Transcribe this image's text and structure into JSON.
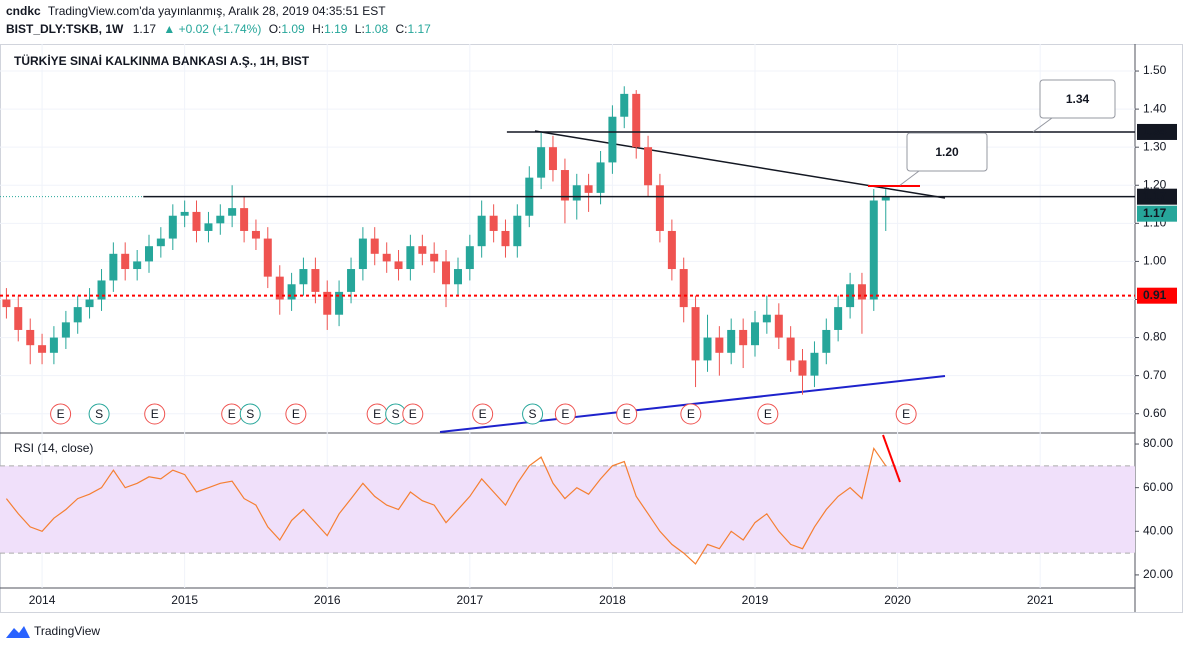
{
  "header": {
    "user": "cndkc",
    "published": "TradingView.com'da yayınlanmış, Aralık 28, 2019 04:35:51 EST",
    "symbol": "BIST_DLY:TSKB, 1W",
    "last": "1.17",
    "change": "▲ +0.02 (+1.74%)",
    "o_label": "O:",
    "o": "1.09",
    "h_label": "H:",
    "h": "1.19",
    "l_label": "L:",
    "l": "1.08",
    "c_label": "C:",
    "c": "1.17"
  },
  "footer": "TradingView",
  "chart_data": [
    {
      "type": "candlestick",
      "title": "TÜRKİYE SINAİ KALKINMA BANKASI A.Ş., 1H, BIST",
      "x": [
        2013.75,
        2013.833,
        2013.917,
        2014,
        2014.083,
        2014.167,
        2014.25,
        2014.333,
        2014.417,
        2014.5,
        2014.583,
        2014.667,
        2014.75,
        2014.833,
        2014.917,
        2015,
        2015.083,
        2015.167,
        2015.25,
        2015.333,
        2015.417,
        2015.5,
        2015.583,
        2015.667,
        2015.75,
        2015.833,
        2015.917,
        2016,
        2016.083,
        2016.167,
        2016.25,
        2016.333,
        2016.417,
        2016.5,
        2016.583,
        2016.667,
        2016.75,
        2016.833,
        2016.917,
        2017,
        2017.083,
        2017.167,
        2017.25,
        2017.333,
        2017.417,
        2017.5,
        2017.583,
        2017.667,
        2017.75,
        2017.833,
        2017.917,
        2018,
        2018.083,
        2018.167,
        2018.25,
        2018.333,
        2018.417,
        2018.5,
        2018.583,
        2018.667,
        2018.75,
        2018.833,
        2018.917,
        2019,
        2019.083,
        2019.167,
        2019.25,
        2019.333,
        2019.417,
        2019.5,
        2019.583,
        2019.667,
        2019.75,
        2019.833,
        2019.917
      ],
      "open": [
        0.9,
        0.88,
        0.82,
        0.78,
        0.76,
        0.8,
        0.84,
        0.88,
        0.9,
        0.95,
        1.02,
        0.98,
        1.0,
        1.04,
        1.06,
        1.12,
        1.13,
        1.08,
        1.1,
        1.12,
        1.14,
        1.08,
        1.06,
        0.96,
        0.9,
        0.94,
        0.98,
        0.92,
        0.86,
        0.92,
        0.98,
        1.06,
        1.02,
        1.0,
        0.98,
        1.04,
        1.02,
        1.0,
        0.94,
        0.98,
        1.04,
        1.12,
        1.08,
        1.04,
        1.12,
        1.22,
        1.3,
        1.24,
        1.16,
        1.2,
        1.18,
        1.26,
        1.38,
        1.44,
        1.3,
        1.2,
        1.08,
        0.98,
        0.88,
        0.74,
        0.8,
        0.76,
        0.82,
        0.78,
        0.84,
        0.86,
        0.8,
        0.74,
        0.7,
        0.76,
        0.82,
        0.88,
        0.94,
        0.9,
        1.16
      ],
      "high": [
        0.93,
        0.91,
        0.85,
        0.81,
        0.83,
        0.87,
        0.91,
        0.93,
        0.98,
        1.05,
        1.05,
        1.03,
        1.07,
        1.09,
        1.15,
        1.16,
        1.16,
        1.13,
        1.15,
        1.2,
        1.17,
        1.11,
        1.09,
        0.99,
        0.97,
        1.01,
        1.01,
        0.95,
        0.95,
        1.01,
        1.09,
        1.09,
        1.05,
        1.03,
        1.07,
        1.07,
        1.05,
        1.03,
        1.01,
        1.07,
        1.16,
        1.15,
        1.11,
        1.15,
        1.25,
        1.34,
        1.33,
        1.27,
        1.23,
        1.23,
        1.29,
        1.41,
        1.46,
        1.45,
        1.33,
        1.23,
        1.11,
        1.01,
        0.91,
        0.86,
        0.83,
        0.85,
        0.85,
        0.87,
        0.91,
        0.89,
        0.83,
        0.77,
        0.79,
        0.85,
        0.91,
        0.97,
        0.97,
        1.19,
        1.19
      ],
      "low": [
        0.85,
        0.79,
        0.73,
        0.73,
        0.73,
        0.77,
        0.81,
        0.85,
        0.87,
        0.92,
        0.95,
        0.95,
        0.97,
        1.01,
        1.03,
        1.09,
        1.05,
        1.05,
        1.07,
        1.09,
        1.05,
        1.03,
        0.93,
        0.86,
        0.87,
        0.91,
        0.89,
        0.82,
        0.83,
        0.89,
        0.95,
        0.99,
        0.97,
        0.95,
        0.95,
        0.99,
        0.97,
        0.88,
        0.91,
        0.95,
        1.01,
        1.05,
        1.01,
        1.01,
        1.09,
        1.19,
        1.21,
        1.1,
        1.11,
        1.13,
        1.15,
        1.23,
        1.35,
        1.27,
        1.17,
        1.05,
        0.95,
        0.84,
        0.67,
        0.71,
        0.7,
        0.73,
        0.72,
        0.75,
        0.81,
        0.77,
        0.71,
        0.65,
        0.67,
        0.73,
        0.79,
        0.85,
        0.81,
        0.87,
        1.08
      ],
      "close": [
        0.88,
        0.82,
        0.78,
        0.76,
        0.8,
        0.84,
        0.88,
        0.9,
        0.95,
        1.02,
        0.98,
        1.0,
        1.04,
        1.06,
        1.12,
        1.13,
        1.08,
        1.1,
        1.12,
        1.14,
        1.08,
        1.06,
        0.96,
        0.9,
        0.94,
        0.98,
        0.92,
        0.86,
        0.92,
        0.98,
        1.06,
        1.02,
        1.0,
        0.98,
        1.04,
        1.02,
        1.0,
        0.94,
        0.98,
        1.04,
        1.12,
        1.08,
        1.04,
        1.12,
        1.22,
        1.3,
        1.24,
        1.16,
        1.2,
        1.18,
        1.26,
        1.38,
        1.44,
        1.3,
        1.2,
        1.08,
        0.98,
        0.88,
        0.74,
        0.8,
        0.76,
        0.82,
        0.78,
        0.84,
        0.86,
        0.8,
        0.74,
        0.7,
        0.76,
        0.82,
        0.88,
        0.94,
        0.9,
        1.16,
        1.17
      ],
      "up_color": "#26a69a",
      "down_color": "#ef5350",
      "xlim": [
        2013.705,
        2021.665
      ],
      "xticks": [
        2014,
        2015,
        2016,
        2017,
        2018,
        2019,
        2020,
        2021
      ],
      "ylim": [
        0.552,
        1.571
      ],
      "yticks": [
        {
          "value": 0.6,
          "label": "0.60"
        },
        {
          "value": 0.7,
          "label": "0.70"
        },
        {
          "value": 0.8,
          "label": "0.80"
        },
        {
          "value": 0.9,
          "label": "0.90"
        },
        {
          "value": 1.0,
          "label": "1.00"
        },
        {
          "value": 1.1,
          "label": "1.10"
        },
        {
          "value": 1.2,
          "label": "1.20"
        },
        {
          "value": 1.3,
          "label": "1.30"
        },
        {
          "value": 1.4,
          "label": "1.40"
        },
        {
          "value": 1.5,
          "label": "1.50"
        }
      ],
      "levels": [
        {
          "value": 1.34,
          "label": "1.34",
          "color": "#131722",
          "from": 2017.26
        },
        {
          "value": 1.17,
          "label": "1.17",
          "color": "#131722",
          "from": 2014.71
        },
        {
          "value": 0.91,
          "label": "0.91",
          "color": "#ff0000",
          "from": 2013.705,
          "dashed": true
        }
      ],
      "last": {
        "value": 1.17,
        "label": "1.17",
        "color": "#26a69a"
      },
      "annotations": [
        {
          "value": 1.34,
          "label": "1.34"
        },
        {
          "value": 1.2,
          "label": "1.20"
        }
      ],
      "events": [
        {
          "label": "E",
          "x": 2014.13
        },
        {
          "label": "S",
          "x": 2014.4
        },
        {
          "label": "E",
          "x": 2014.79
        },
        {
          "label": "E",
          "x": 2015.33
        },
        {
          "label": "S",
          "x": 2015.46
        },
        {
          "label": "E",
          "x": 2015.78
        },
        {
          "label": "E",
          "x": 2016.35
        },
        {
          "label": "S",
          "x": 2016.48
        },
        {
          "label": "E",
          "x": 2016.6
        },
        {
          "label": "E",
          "x": 2017.09
        },
        {
          "label": "S",
          "x": 2017.44
        },
        {
          "label": "E",
          "x": 2017.67
        },
        {
          "label": "E",
          "x": 2018.1
        },
        {
          "label": "E",
          "x": 2018.55
        },
        {
          "label": "E",
          "x": 2019.09
        },
        {
          "label": "E",
          "x": 2020.06
        }
      ]
    },
    {
      "type": "line",
      "title": "RSI (14, close)",
      "x": [
        2013.75,
        2013.833,
        2013.917,
        2014,
        2014.083,
        2014.167,
        2014.25,
        2014.333,
        2014.417,
        2014.5,
        2014.583,
        2014.667,
        2014.75,
        2014.833,
        2014.917,
        2015,
        2015.083,
        2015.167,
        2015.25,
        2015.333,
        2015.417,
        2015.5,
        2015.583,
        2015.667,
        2015.75,
        2015.833,
        2015.917,
        2016,
        2016.083,
        2016.167,
        2016.25,
        2016.333,
        2016.417,
        2016.5,
        2016.583,
        2016.667,
        2016.75,
        2016.833,
        2016.917,
        2017,
        2017.083,
        2017.167,
        2017.25,
        2017.333,
        2017.417,
        2017.5,
        2017.583,
        2017.667,
        2017.75,
        2017.833,
        2017.917,
        2018,
        2018.083,
        2018.167,
        2018.25,
        2018.333,
        2018.417,
        2018.5,
        2018.583,
        2018.667,
        2018.75,
        2018.833,
        2018.917,
        2019,
        2019.083,
        2019.167,
        2019.25,
        2019.333,
        2019.417,
        2019.5,
        2019.583,
        2019.667,
        2019.75,
        2019.833,
        2019.917
      ],
      "series": [
        {
          "color": "#f57f32",
          "values": [
            55,
            48,
            42,
            40,
            46,
            50,
            55,
            57,
            60,
            68,
            60,
            62,
            65,
            64,
            68,
            66,
            58,
            60,
            62,
            63,
            55,
            52,
            42,
            36,
            45,
            50,
            44,
            38,
            48,
            55,
            62,
            56,
            52,
            50,
            58,
            54,
            52,
            44,
            50,
            56,
            64,
            58,
            52,
            62,
            70,
            74,
            62,
            55,
            60,
            57,
            64,
            70,
            72,
            56,
            48,
            40,
            34,
            30,
            25,
            34,
            32,
            40,
            36,
            44,
            48,
            40,
            34,
            32,
            42,
            50,
            56,
            60,
            55,
            78,
            70
          ]
        }
      ],
      "ylim": [
        14.0,
        84.6
      ],
      "yticks": [
        {
          "value": 20,
          "label": "20.00"
        },
        {
          "value": 40,
          "label": "40.00"
        },
        {
          "value": 60,
          "label": "60.00"
        },
        {
          "value": 80,
          "label": "80.00"
        }
      ],
      "bands": [
        30,
        70
      ],
      "band_color": "#f0e0fa"
    }
  ]
}
